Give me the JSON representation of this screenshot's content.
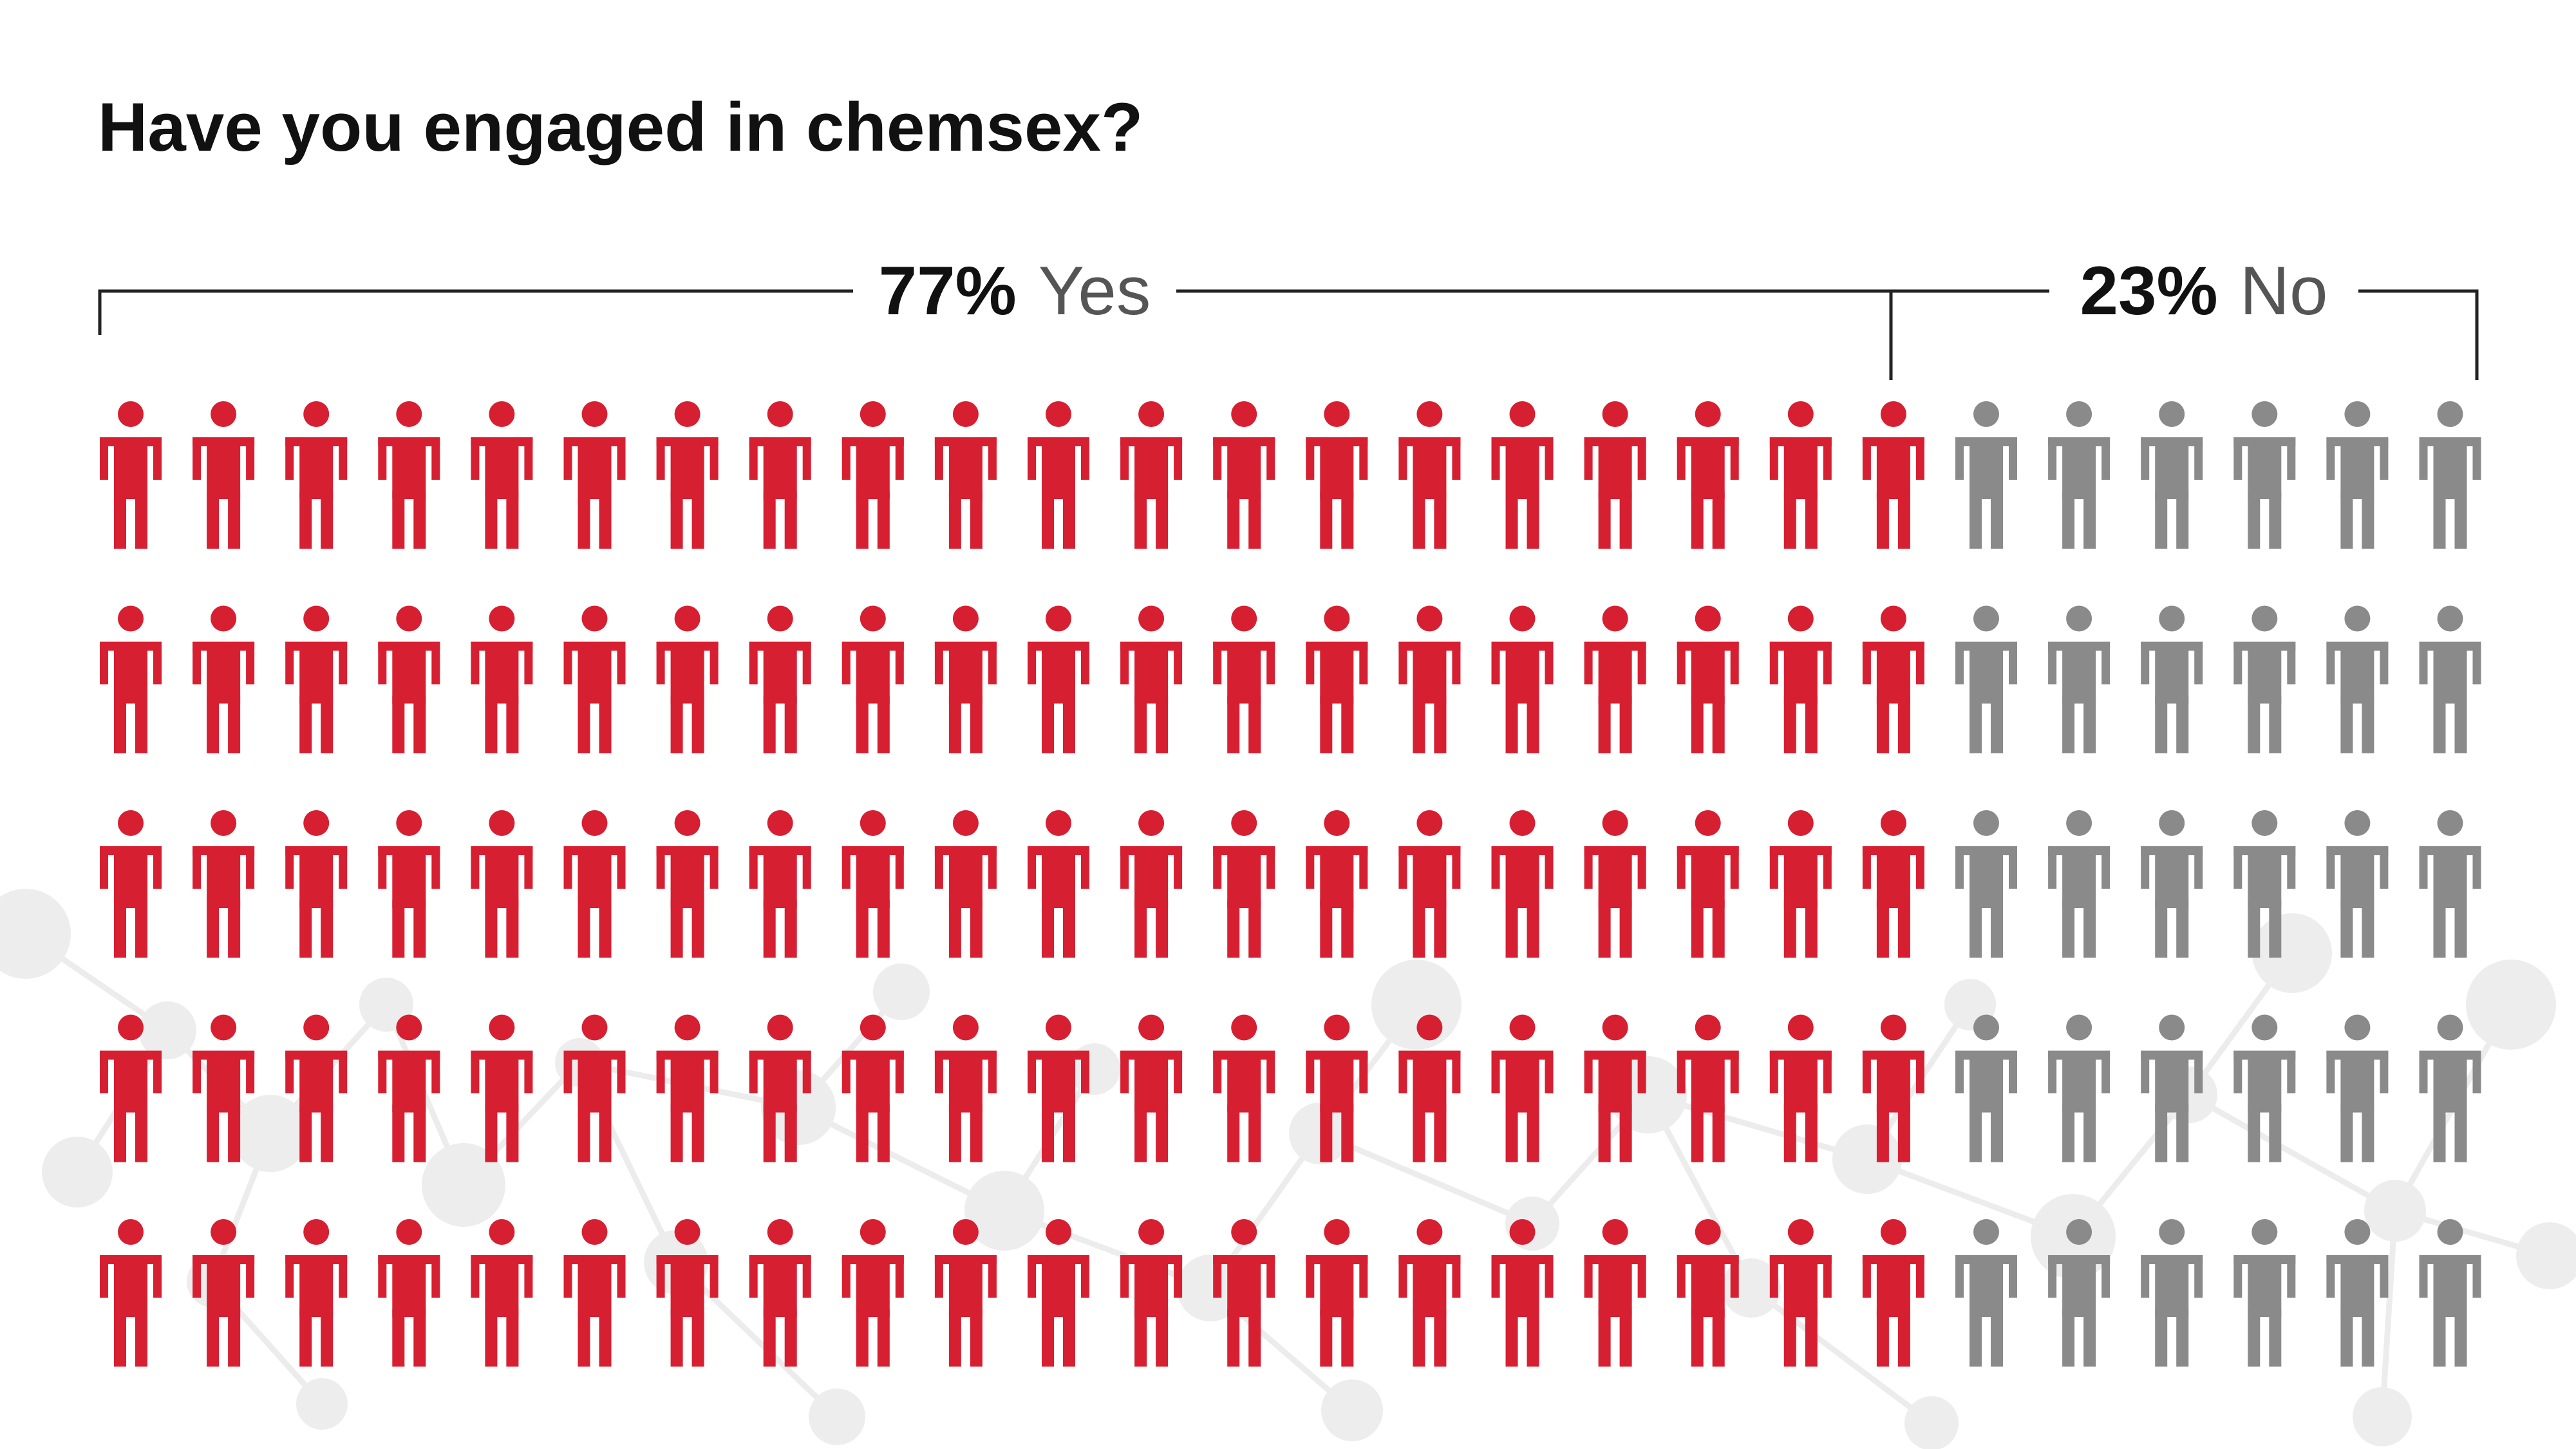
{
  "title": "Have you engaged in chemsex?",
  "chart_data": {
    "type": "pictogram",
    "title": "Have you engaged in chemsex?",
    "rows": 5,
    "icons_per_row": 26,
    "total_icons": 130,
    "categories": [
      {
        "percent": "77%",
        "label": "Yes",
        "value": 77,
        "icons_per_row": 20,
        "color": "#d71f32"
      },
      {
        "percent": "23%",
        "label": "No",
        "value": 23,
        "icons_per_row": 6,
        "color": "#8a8a8a"
      }
    ]
  }
}
